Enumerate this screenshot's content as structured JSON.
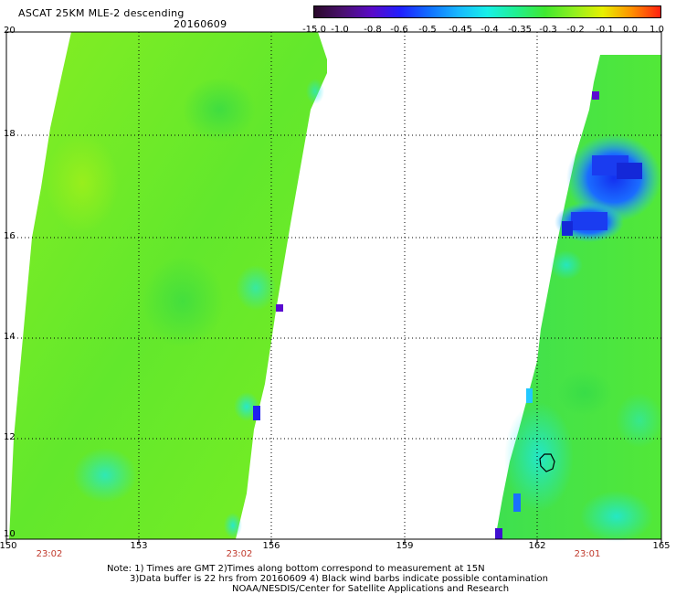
{
  "header": {
    "title": "ASCAT 25KM MLE-2 descending",
    "date": "20160609"
  },
  "colorbar": {
    "labels": [
      "-15.0",
      "-1.0",
      "-0.8",
      "-0.6",
      "-0.5",
      "-0.45",
      "-0.4",
      "-0.35",
      "-0.3",
      "-0.2",
      "-0.1",
      "0.0",
      "1.0"
    ],
    "colors": [
      "#2a0a2a",
      "#4a1070",
      "#5a0ac8",
      "#2020ff",
      "#1070ff",
      "#18b8ff",
      "#18f0e8",
      "#20f090",
      "#40e830",
      "#90f020",
      "#e8f000",
      "#ff9000",
      "#ff2010"
    ]
  },
  "map": {
    "lat_labels": [
      "20",
      "18",
      "16",
      "14",
      "12",
      "10"
    ],
    "lon_labels": [
      "150",
      "153",
      "156",
      "159",
      "162",
      "165"
    ],
    "lat_range": [
      10,
      20
    ],
    "lon_range": [
      150,
      165
    ],
    "grid": "dotted",
    "pass_times": [
      "23:02",
      "23:02",
      "23:01"
    ]
  },
  "footer": {
    "note_line1": "Note: 1) Times are GMT 2)Times along bottom correspond to measurement at 15N",
    "note_line2": "3)Data buffer is 22 hrs from 20160609 4) Black wind barbs indicate possible contamination",
    "credit": "NOAA/NESDIS/Center for Satellite Applications and Research"
  }
}
